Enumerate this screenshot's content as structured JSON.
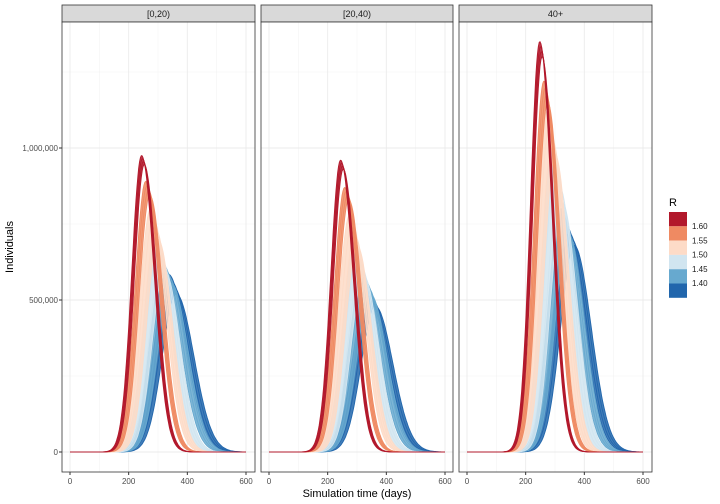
{
  "chart_data": {
    "type": "line",
    "xlabel": "Simulation time (days)",
    "ylabel": "Individuals",
    "xlim": [
      0,
      600
    ],
    "ylim": [
      -80000,
      1380000
    ],
    "x_ticks": [
      0,
      200,
      400,
      600
    ],
    "y_ticks": [
      0,
      500000,
      1000000
    ],
    "y_tick_labels": [
      "0",
      "500,000",
      "1,000,000"
    ],
    "x_tick_labels": [
      "0",
      "200",
      "400",
      "600"
    ],
    "grid": true,
    "legend": {
      "title": "R",
      "position": "right",
      "labels": [
        "1.60",
        "1.55",
        "1.50",
        "1.45",
        "1.40"
      ],
      "colors": [
        "#b2182b",
        "#ef8a62",
        "#fddbc7",
        "#d1e5f0",
        "#67a9cf",
        "#2166ac"
      ]
    },
    "facets": [
      {
        "label": "[0,20)",
        "bins": [
          {
            "color": "#2166ac",
            "peaks": [
              585000,
              520000
            ],
            "peak_days": [
              335,
              362
            ],
            "sd": 54
          },
          {
            "color": "#67a9cf",
            "peaks": [
              615000,
              555000
            ],
            "peak_days": [
              318,
              345
            ],
            "sd": 51
          },
          {
            "color": "#d1e5f0",
            "peaks": [
              700000,
              600000
            ],
            "peak_days": [
              292,
              322
            ],
            "sd": 47
          },
          {
            "color": "#fddbc7",
            "peaks": [
              800000,
              700000
            ],
            "peak_days": [
              275,
              300
            ],
            "sd": 44
          },
          {
            "color": "#ef8a62",
            "peaks": [
              890000,
              845000
            ],
            "peak_days": [
              258,
              272
            ],
            "sd": 41
          },
          {
            "color": "#b2182b",
            "peaks": [
              975000,
              945000
            ],
            "peak_days": [
              244,
              253
            ],
            "sd": 38
          }
        ]
      },
      {
        "label": "[20,40)",
        "bins": [
          {
            "color": "#2166ac",
            "peaks": [
              530000,
              480000
            ],
            "peak_days": [
              335,
              362
            ],
            "sd": 54
          },
          {
            "color": "#67a9cf",
            "peaks": [
              585000,
              520000
            ],
            "peak_days": [
              318,
              345
            ],
            "sd": 51
          },
          {
            "color": "#d1e5f0",
            "peaks": [
              680000,
              580000
            ],
            "peak_days": [
              292,
              322
            ],
            "sd": 47
          },
          {
            "color": "#fddbc7",
            "peaks": [
              780000,
              680000
            ],
            "peak_days": [
              275,
              300
            ],
            "sd": 44
          },
          {
            "color": "#ef8a62",
            "peaks": [
              870000,
              830000
            ],
            "peak_days": [
              258,
              272
            ],
            "sd": 41
          },
          {
            "color": "#b2182b",
            "peaks": [
              960000,
              930000
            ],
            "peak_days": [
              244,
              253
            ],
            "sd": 38
          }
        ]
      },
      {
        "label": "40+",
        "bins": [
          {
            "color": "#2166ac",
            "peaks": [
              740000,
              680000
            ],
            "peak_days": [
              340,
              365
            ],
            "sd": 52
          },
          {
            "color": "#67a9cf",
            "peaks": [
              800000,
              720000
            ],
            "peak_days": [
              320,
              345
            ],
            "sd": 49
          },
          {
            "color": "#d1e5f0",
            "peaks": [
              990000,
              820000
            ],
            "peak_days": [
              292,
              325
            ],
            "sd": 45
          },
          {
            "color": "#fddbc7",
            "peaks": [
              1120000,
              980000
            ],
            "peak_days": [
              272,
              300
            ],
            "sd": 42
          },
          {
            "color": "#ef8a62",
            "peaks": [
              1220000,
              1150000
            ],
            "peak_days": [
              262,
              275
            ],
            "sd": 39
          },
          {
            "color": "#b2182b",
            "peaks": [
              1350000,
              1300000
            ],
            "peak_days": [
              248,
              256
            ],
            "sd": 36
          }
        ]
      }
    ]
  }
}
